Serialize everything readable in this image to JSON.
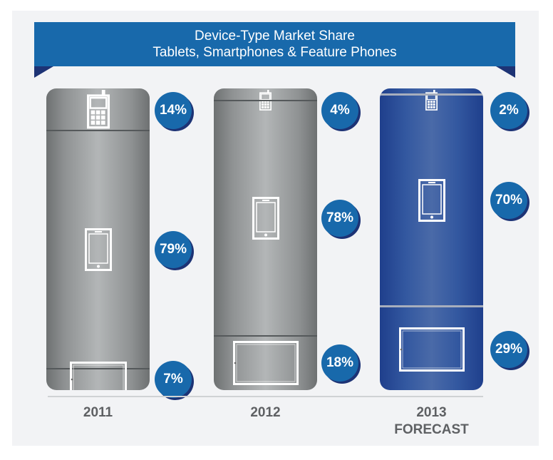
{
  "chart_data": {
    "type": "bar",
    "stacked": true,
    "title": "Device-Type Market Share",
    "subtitle": "Tablets, Smartphones & Feature Phones",
    "categories": [
      "2011",
      "2012",
      "2013"
    ],
    "category_sublabels": [
      "",
      "",
      "FORECAST"
    ],
    "series": [
      {
        "name": "Feature Phones",
        "icon": "feature-phone-icon",
        "values": [
          14,
          4,
          2
        ],
        "labels": [
          "14%",
          "4%",
          "2%"
        ]
      },
      {
        "name": "Smartphones",
        "icon": "smartphone-icon",
        "values": [
          79,
          78,
          70
        ],
        "labels": [
          "79%",
          "78%",
          "70%"
        ]
      },
      {
        "name": "Tablets",
        "icon": "tablet-icon",
        "values": [
          7,
          18,
          29
        ],
        "labels": [
          "7%",
          "18%",
          "29%"
        ]
      }
    ],
    "ylim": [
      0,
      100
    ],
    "grid": false
  },
  "colors": {
    "banner": "#1869ab",
    "banner_fold": "#1d3375",
    "bar_gray": "#a3a6a7",
    "bar_forecast": "#3358a0",
    "badge": "#1869ab"
  }
}
